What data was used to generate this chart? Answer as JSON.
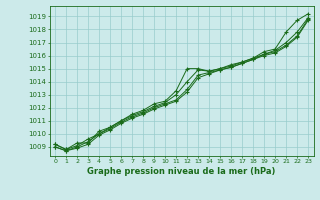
{
  "xlabel": "Graphe pression niveau de la mer (hPa)",
  "ylim": [
    1008.3,
    1019.8
  ],
  "xlim": [
    -0.5,
    23.5
  ],
  "yticks": [
    1009,
    1010,
    1011,
    1012,
    1013,
    1014,
    1015,
    1016,
    1017,
    1018,
    1019
  ],
  "xticks": [
    0,
    1,
    2,
    3,
    4,
    5,
    6,
    7,
    8,
    9,
    10,
    11,
    12,
    13,
    14,
    15,
    16,
    17,
    18,
    19,
    20,
    21,
    22,
    23
  ],
  "bg_color": "#cceaea",
  "line_color": "#1a6b1a",
  "grid_color": "#99cccc",
  "line1": [
    1009.2,
    1008.8,
    1009.3,
    1009.3,
    1010.2,
    1010.5,
    1011.0,
    1011.5,
    1011.8,
    1012.3,
    1012.5,
    1013.3,
    1015.0,
    1015.0,
    1014.8,
    1015.0,
    1015.3,
    1015.5,
    1015.8,
    1016.3,
    1016.5,
    1017.8,
    1018.7,
    1019.2
  ],
  "line2": [
    1009.2,
    1008.8,
    1009.1,
    1009.6,
    1010.0,
    1010.5,
    1011.0,
    1011.4,
    1011.7,
    1012.1,
    1012.4,
    1013.0,
    1014.0,
    1014.9,
    1014.8,
    1015.0,
    1015.2,
    1015.5,
    1015.8,
    1016.1,
    1016.4,
    1017.0,
    1017.8,
    1018.9
  ],
  "line3": [
    1009.0,
    1008.7,
    1009.0,
    1009.4,
    1010.0,
    1010.4,
    1010.9,
    1011.3,
    1011.6,
    1012.0,
    1012.3,
    1012.6,
    1013.4,
    1014.5,
    1014.7,
    1014.9,
    1015.1,
    1015.4,
    1015.7,
    1016.1,
    1016.3,
    1016.8,
    1017.5,
    1018.8
  ],
  "line4": [
    1009.0,
    1008.7,
    1008.9,
    1009.2,
    1009.9,
    1010.3,
    1010.8,
    1011.2,
    1011.5,
    1011.9,
    1012.2,
    1012.5,
    1013.2,
    1014.3,
    1014.6,
    1014.9,
    1015.1,
    1015.4,
    1015.7,
    1016.0,
    1016.2,
    1016.7,
    1017.4,
    1018.7
  ]
}
